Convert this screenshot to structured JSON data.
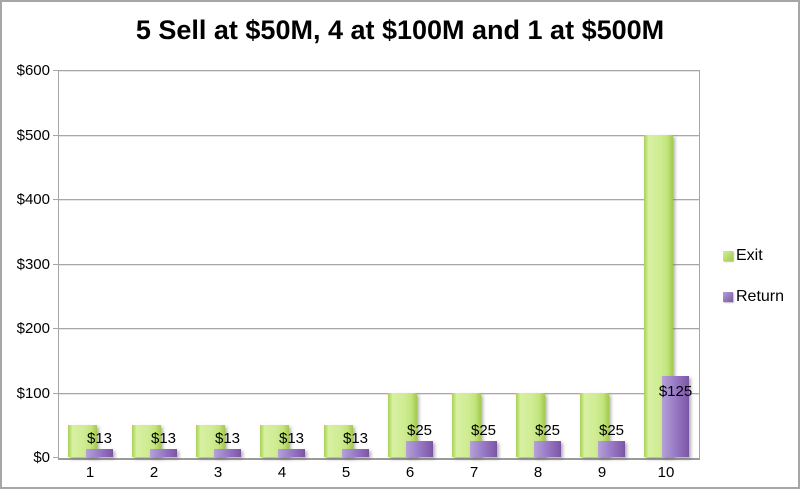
{
  "title": "5 Sell at $50M, 4 at $100M and 1 at $500M",
  "legend": {
    "items": [
      {
        "label": "Exit",
        "swatch": "green-swatch-icon"
      },
      {
        "label": "Return",
        "swatch": "purple-swatch-icon"
      }
    ],
    "position": "right"
  },
  "colors": {
    "exit_bar": "#c3e57d",
    "return_bar": "#9372c0",
    "gridline": "#a8a8a8",
    "plot_border": "#a6a6a6",
    "outer_border": "#a6a6a6",
    "text": "#000000",
    "background": "#ffffff"
  },
  "chart_data": {
    "type": "bar",
    "title": "5 Sell at $50M, 4 at $100M and 1 at $500M",
    "categories": [
      "1",
      "2",
      "3",
      "4",
      "5",
      "6",
      "7",
      "8",
      "9",
      "10"
    ],
    "series": [
      {
        "name": "Exit",
        "values": [
          50,
          50,
          50,
          50,
          50,
          100,
          100,
          100,
          100,
          500
        ],
        "data_labels": []
      },
      {
        "name": "Return",
        "values": [
          13,
          13,
          13,
          13,
          13,
          25,
          25,
          25,
          25,
          125
        ],
        "data_labels": [
          "$13",
          "$13",
          "$13",
          "$13",
          "$13",
          "$25",
          "$25",
          "$25",
          "$25",
          "$125"
        ]
      }
    ],
    "xlabel": "",
    "ylabel": "",
    "ylim": [
      0,
      600
    ],
    "y_step": 100,
    "y_tick_prefix": "$",
    "y_tick_labels": [
      "$0",
      "$100",
      "$200",
      "$300",
      "$400",
      "$500",
      "$600"
    ],
    "grid": true,
    "legend_position": "right",
    "bar_style": "overlapped-pair-with-shadow"
  }
}
